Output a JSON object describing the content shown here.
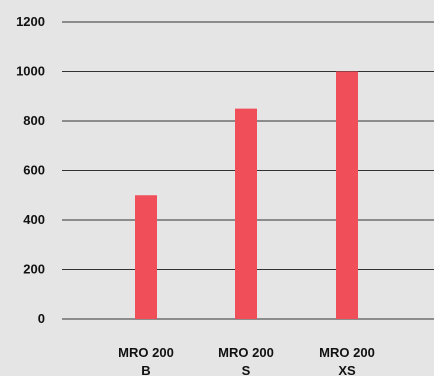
{
  "chart_data": {
    "type": "bar",
    "categories": [
      [
        "MRO 200",
        "B"
      ],
      [
        "MRO 200",
        "S"
      ],
      [
        "MRO 200",
        "XS"
      ]
    ],
    "values": [
      500,
      850,
      1000
    ],
    "ylim": [
      0,
      1200
    ],
    "yticks": [
      0,
      200,
      400,
      600,
      800,
      1000,
      1200
    ],
    "grid": true,
    "bar_color": "#f04e58",
    "title": "",
    "xlabel": "",
    "ylabel": ""
  }
}
